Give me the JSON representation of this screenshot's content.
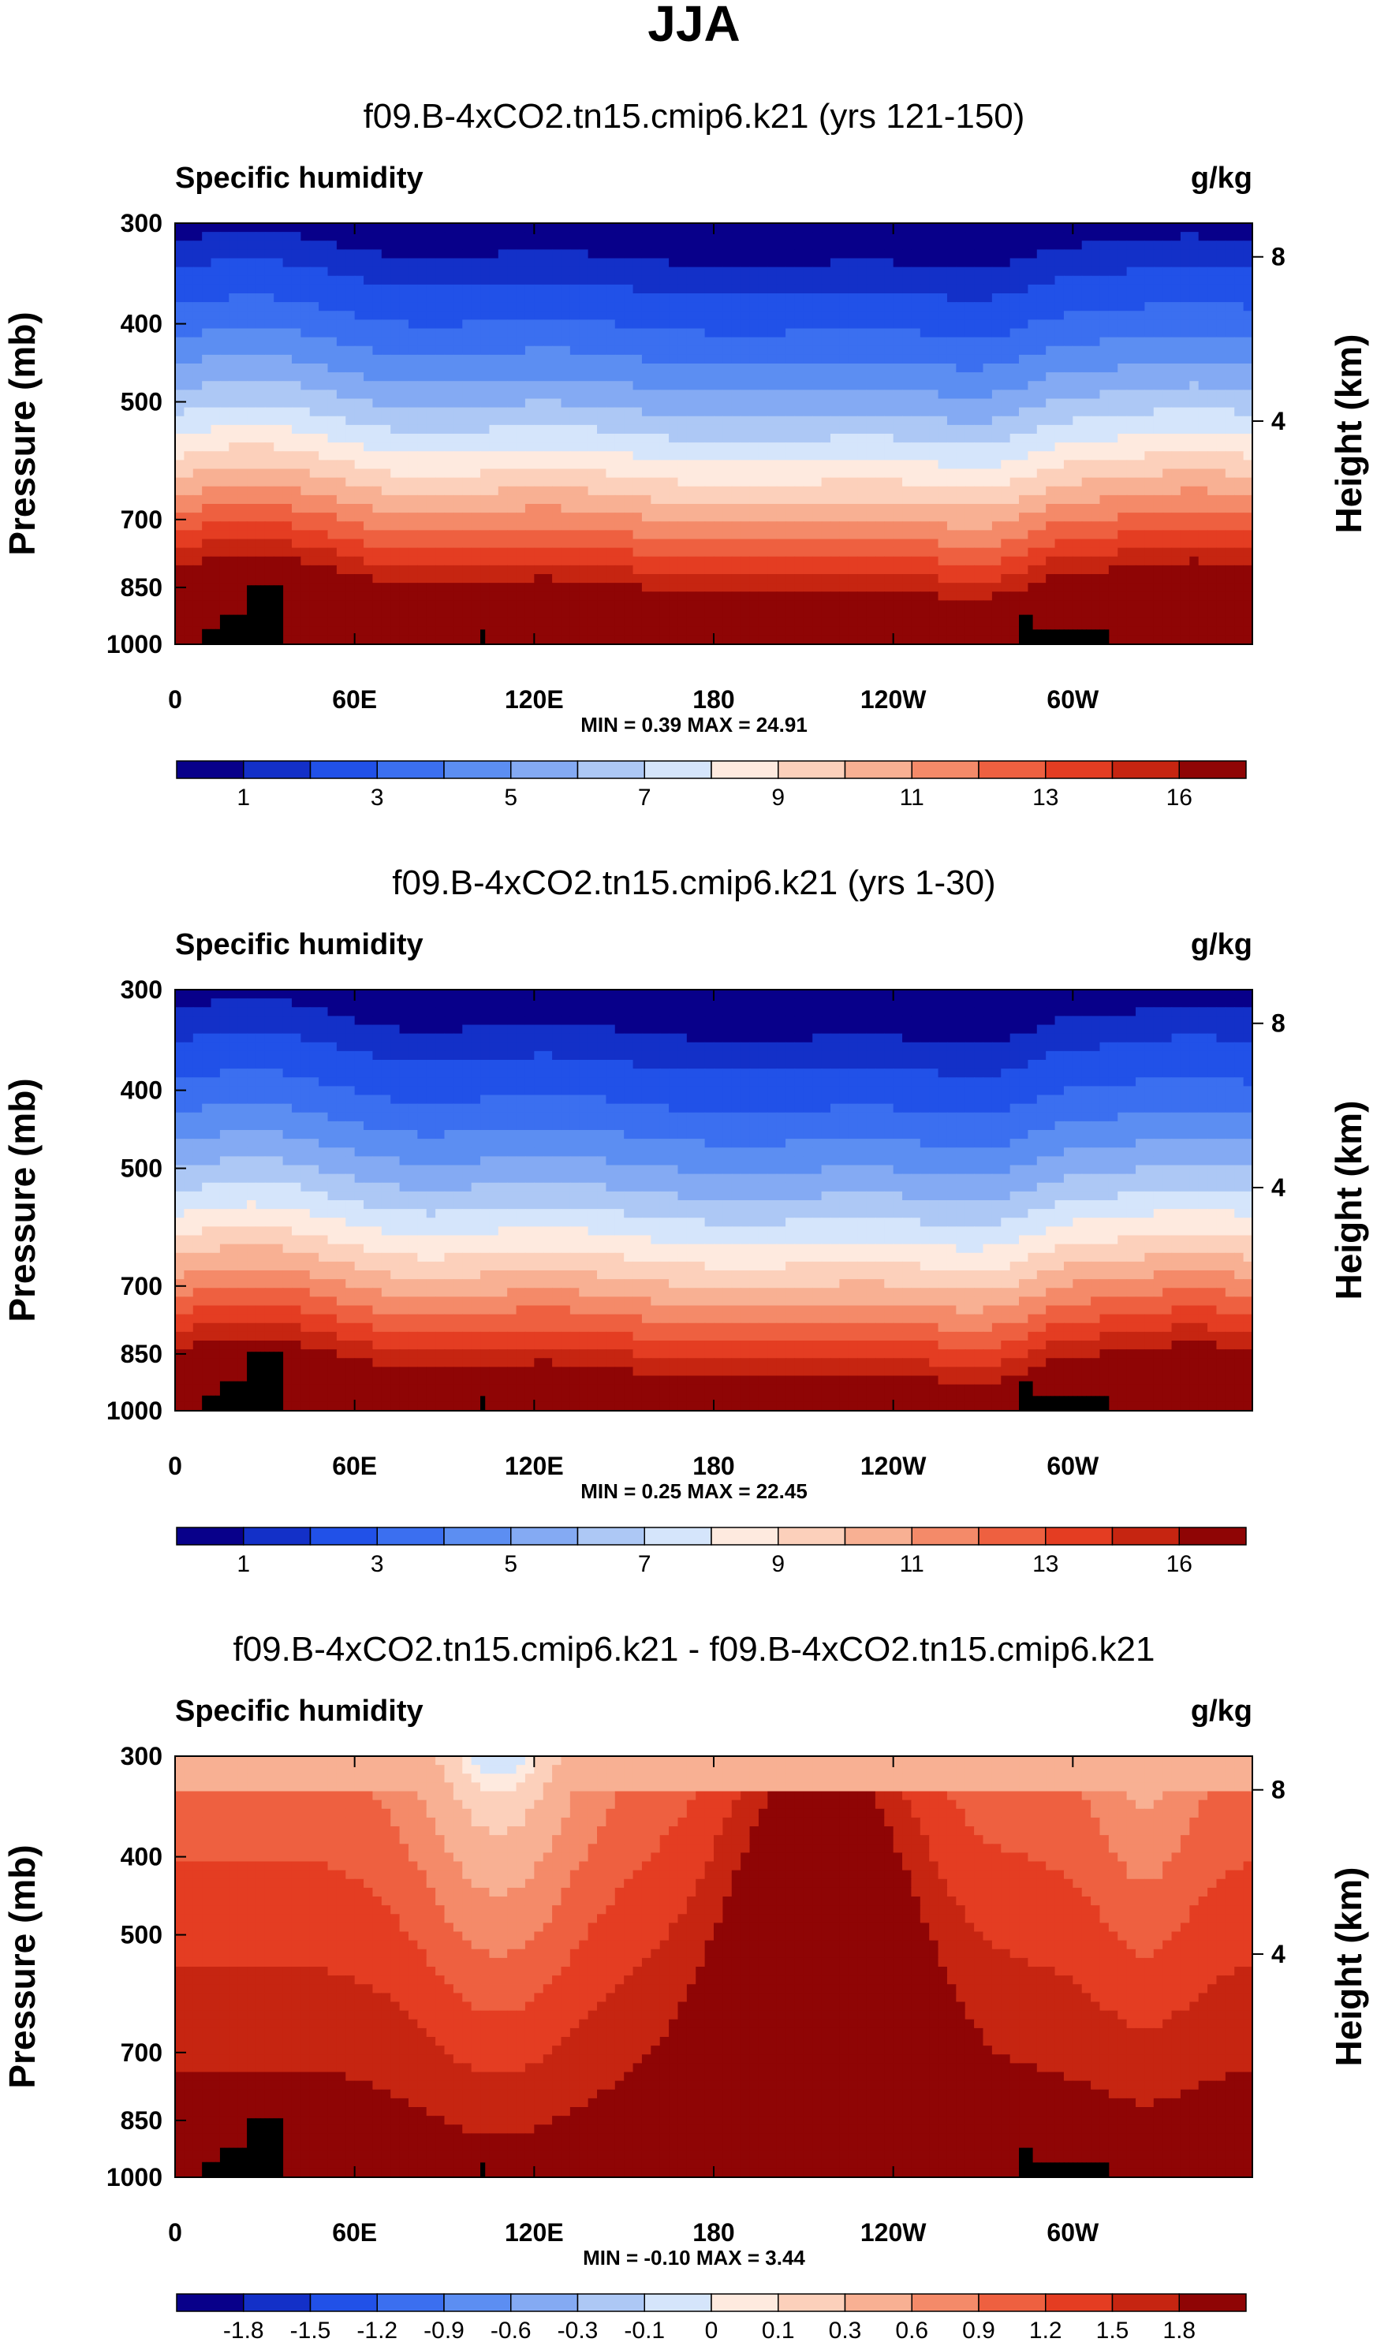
{
  "figure": {
    "title": "JJA"
  },
  "colors": {
    "seq_scale": [
      "#08008a",
      "#1330c8",
      "#2151e8",
      "#3b6ff0",
      "#5c8ef2",
      "#84aaf3",
      "#adc8f5",
      "#d5e5fb",
      "#feeadf",
      "#fcd0bb",
      "#f8b093",
      "#f48a69",
      "#ee6040",
      "#e43d22",
      "#c62511",
      "#8f0505"
    ],
    "diff_scale": [
      "#08008a",
      "#1330c8",
      "#2151e8",
      "#3b6ff0",
      "#5c8ef2",
      "#84aaf3",
      "#adc8f5",
      "#d5e5fb",
      "#feeadf",
      "#fcd0bb",
      "#f8b093",
      "#f48a69",
      "#ee6040",
      "#e43d22",
      "#c62511",
      "#8f0505"
    ],
    "topography": "#000000"
  },
  "chart_data": [
    {
      "type": "heatmap",
      "panel": "top",
      "title": "f09.B-4xCO2.tn15.cmip6.k21 (yrs 121-150)",
      "left_label": "Specific humidity",
      "right_label": "g/kg",
      "ylabel": "Pressure (mb)",
      "ylabel_right": "Height (km)",
      "x_ticks": [
        "0",
        "60E",
        "120E",
        "180",
        "120W",
        "60W"
      ],
      "y_ticks": [
        "300",
        "400",
        "500",
        "700",
        "850",
        "1000"
      ],
      "y_ticks_right": [
        "8",
        "4"
      ],
      "stats_text": "MIN =   0.39  MAX =  24.91",
      "min": 0.39,
      "max": 24.91,
      "colorbar_labels": [
        "1",
        "3",
        "5",
        "7",
        "9",
        "11",
        "13",
        "16"
      ]
    },
    {
      "type": "heatmap",
      "panel": "middle",
      "title": "f09.B-4xCO2.tn15.cmip6.k21 (yrs 1-30)",
      "left_label": "Specific humidity",
      "right_label": "g/kg",
      "ylabel": "Pressure (mb)",
      "ylabel_right": "Height (km)",
      "x_ticks": [
        "0",
        "60E",
        "120E",
        "180",
        "120W",
        "60W"
      ],
      "y_ticks": [
        "300",
        "400",
        "500",
        "700",
        "850",
        "1000"
      ],
      "y_ticks_right": [
        "8",
        "4"
      ],
      "stats_text": "MIN =   0.25  MAX =  22.45",
      "min": 0.25,
      "max": 22.45,
      "colorbar_labels": [
        "1",
        "3",
        "5",
        "7",
        "9",
        "11",
        "13",
        "16"
      ]
    },
    {
      "type": "heatmap",
      "panel": "bottom",
      "title": "f09.B-4xCO2.tn15.cmip6.k21 - f09.B-4xCO2.tn15.cmip6.k21",
      "left_label": "Specific humidity",
      "right_label": "g/kg",
      "ylabel": "Pressure (mb)",
      "ylabel_right": "Height (km)",
      "x_ticks": [
        "0",
        "60E",
        "120E",
        "180",
        "120W",
        "60W"
      ],
      "y_ticks": [
        "300",
        "400",
        "500",
        "700",
        "850",
        "1000"
      ],
      "y_ticks_right": [
        "8",
        "4"
      ],
      "stats_text": "MIN =  -0.10  MAX =   3.44",
      "min": -0.1,
      "max": 3.44,
      "colorbar_labels": [
        "-1.8",
        "-1.5",
        "-1.2",
        "-0.9",
        "-0.6",
        "-0.3",
        "-0.1",
        "0",
        "0.1",
        "0.3",
        "0.6",
        "0.9",
        "1.2",
        "1.5",
        "1.8"
      ]
    }
  ]
}
